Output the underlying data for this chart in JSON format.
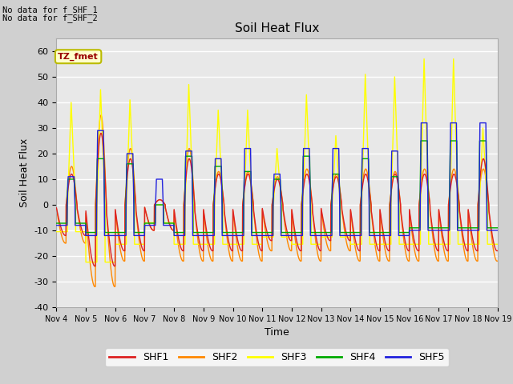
{
  "title": "Soil Heat Flux",
  "ylabel": "Soil Heat Flux",
  "xlabel": "Time",
  "ylim": [
    -40,
    65
  ],
  "yticks": [
    -40,
    -30,
    -20,
    -10,
    0,
    10,
    20,
    30,
    40,
    50,
    60
  ],
  "no_data_text": [
    "No data for f_SHF_1",
    "No data for f_SHF_2"
  ],
  "tz_label": "TZ_fmet",
  "legend_entries": [
    "SHF1",
    "SHF2",
    "SHF3",
    "SHF4",
    "SHF5"
  ],
  "line_colors": [
    "#dd2222",
    "#ff8800",
    "#ffff00",
    "#00aa00",
    "#2222dd"
  ],
  "x_start": 4,
  "x_end": 19,
  "xtick_labels": [
    "Nov 4",
    "Nov 5",
    "Nov 6",
    "Nov 7",
    "Nov 8",
    "Nov 9",
    "Nov 10",
    "Nov 11",
    "Nov 12",
    "Nov 13",
    "Nov 14",
    "Nov 15",
    "Nov 16",
    "Nov 17",
    "Nov 18",
    "Nov 19"
  ],
  "xtick_positions": [
    4,
    5,
    6,
    7,
    8,
    9,
    10,
    11,
    12,
    13,
    14,
    15,
    16,
    17,
    18,
    19
  ]
}
